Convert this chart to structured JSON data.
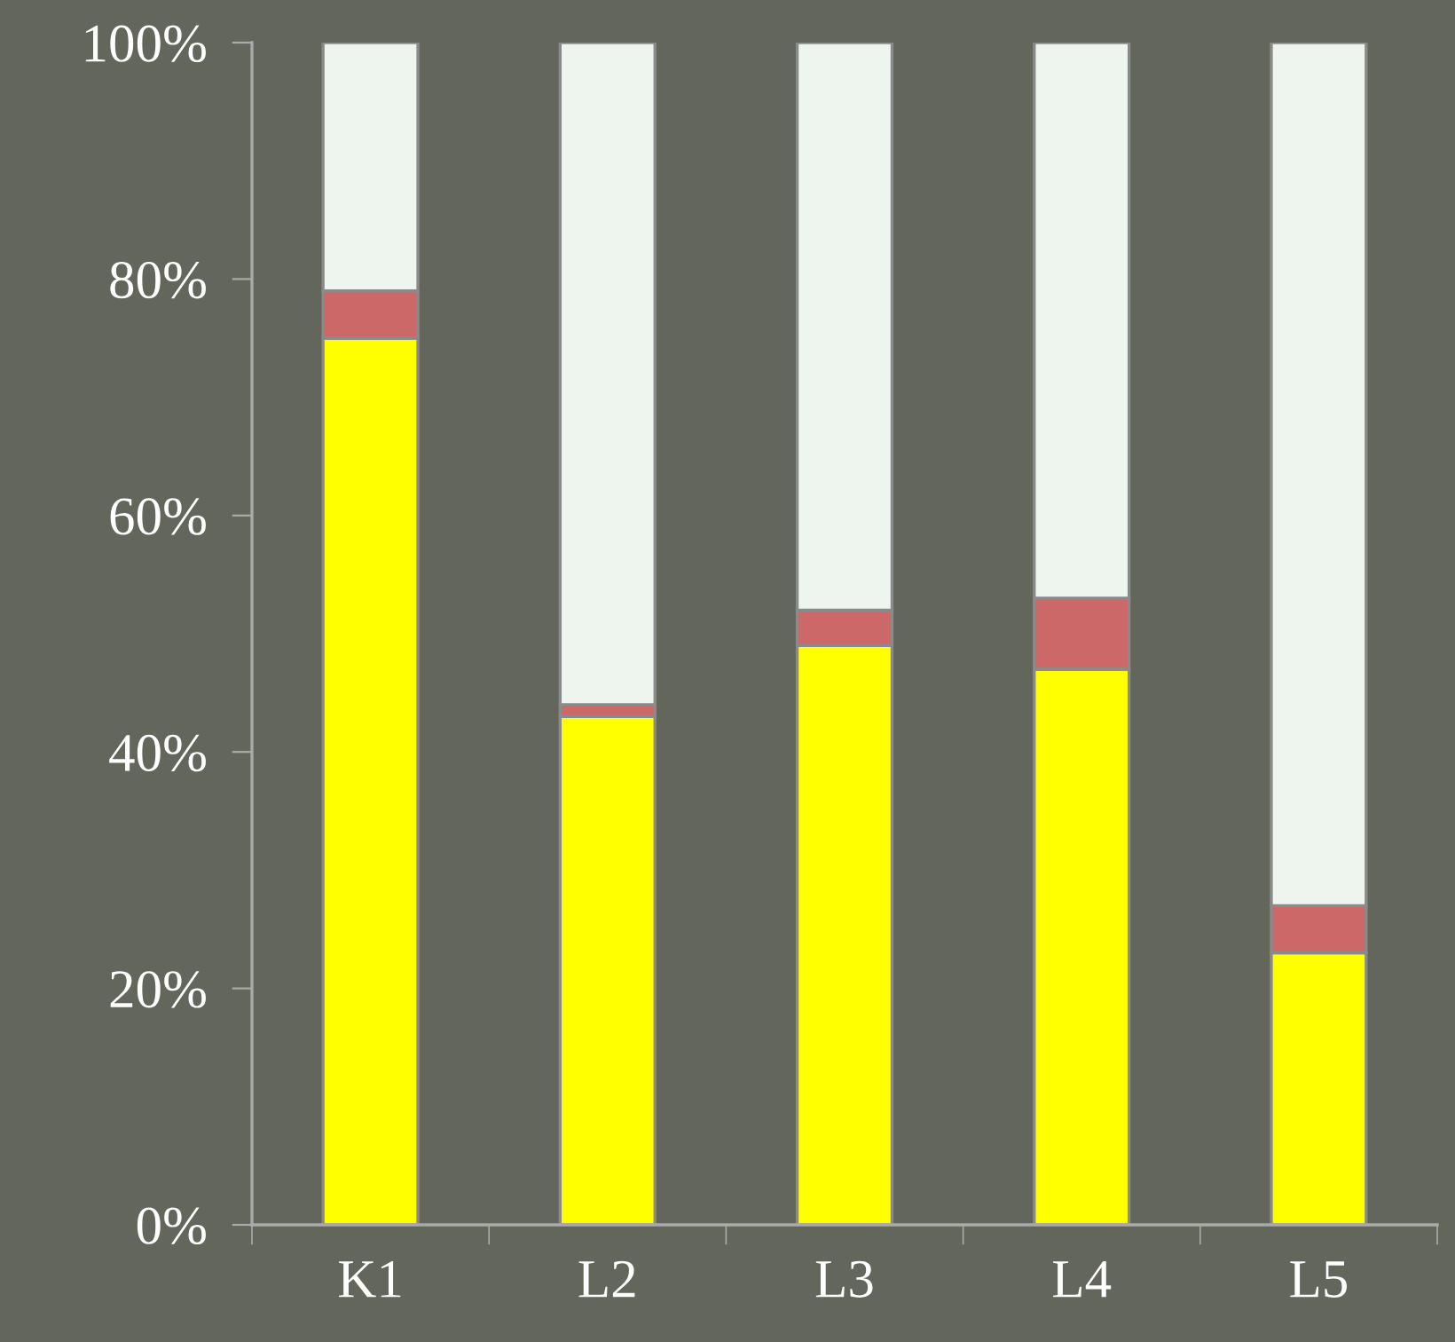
{
  "chart_data": {
    "type": "bar",
    "stacked": true,
    "categories": [
      "K1",
      "L2",
      "L3",
      "L4",
      "L5"
    ],
    "series": [
      {
        "color": "#ffff00",
        "values": [
          75,
          43,
          49,
          47,
          23
        ]
      },
      {
        "color": "#cd6868",
        "values": [
          4,
          1,
          3,
          6,
          4
        ]
      },
      {
        "color": "#eef5ee",
        "values": [
          21,
          56,
          48,
          47,
          73
        ]
      }
    ],
    "ylim": [
      0,
      100
    ],
    "yticks": [
      {
        "value": 0,
        "label": "0%"
      },
      {
        "value": 20,
        "label": "20%"
      },
      {
        "value": 40,
        "label": "40%"
      },
      {
        "value": 60,
        "label": "60%"
      },
      {
        "value": 80,
        "label": "80%"
      },
      {
        "value": 100,
        "label": "100%"
      }
    ],
    "grid": false,
    "legend": false
  }
}
